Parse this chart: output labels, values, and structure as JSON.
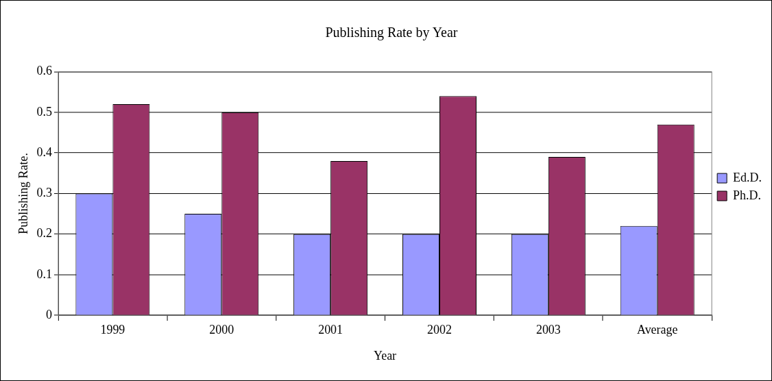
{
  "chart_data": {
    "type": "bar",
    "title": "Publishing Rate by Year",
    "xlabel": "Year",
    "ylabel": "Publishing Rate.",
    "categories": [
      "1999",
      "2000",
      "2001",
      "2002",
      "2003",
      "Average"
    ],
    "series": [
      {
        "name": "Ed.D.",
        "color": "#9999ff",
        "values": [
          0.3,
          0.25,
          0.2,
          0.2,
          0.2,
          0.22
        ]
      },
      {
        "name": "Ph.D.",
        "color": "#993366",
        "values": [
          0.52,
          0.5,
          0.38,
          0.54,
          0.39,
          0.47
        ]
      }
    ],
    "ylim": [
      0,
      0.6
    ],
    "yticks": [
      0,
      0.1,
      0.2,
      0.3,
      0.4,
      0.5,
      0.6
    ],
    "grid": "y",
    "legend": "right"
  }
}
